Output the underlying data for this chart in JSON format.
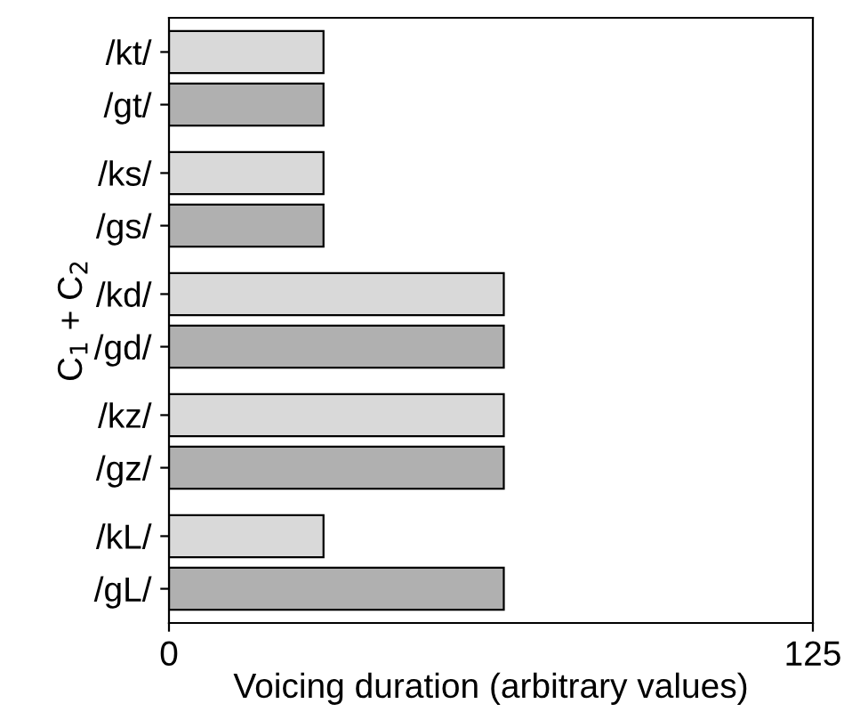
{
  "chart_data": {
    "type": "bar",
    "orientation": "horizontal",
    "xlabel": "Voicing duration (arbitrary values)",
    "ylabel": "C$_{1}$ + C$_{2}$",
    "categories": [
      "/kt/",
      "/gt/",
      "/ks/",
      "/gs/",
      "/kd/",
      "/gd/",
      "/kz/",
      "/gz/",
      "/kL/",
      "/gL/"
    ],
    "values": [
      30,
      30,
      30,
      30,
      65,
      65,
      65,
      65,
      30,
      65
    ],
    "colors": [
      "#d9d9d9",
      "#b0b0b0",
      "#d9d9d9",
      "#b0b0b0",
      "#d9d9d9",
      "#b0b0b0",
      "#d9d9d9",
      "#b0b0b0",
      "#d9d9d9",
      "#b0b0b0"
    ],
    "xlim": [
      0,
      125
    ],
    "xticks": [
      0,
      125
    ],
    "grid": false,
    "legend": false
  }
}
